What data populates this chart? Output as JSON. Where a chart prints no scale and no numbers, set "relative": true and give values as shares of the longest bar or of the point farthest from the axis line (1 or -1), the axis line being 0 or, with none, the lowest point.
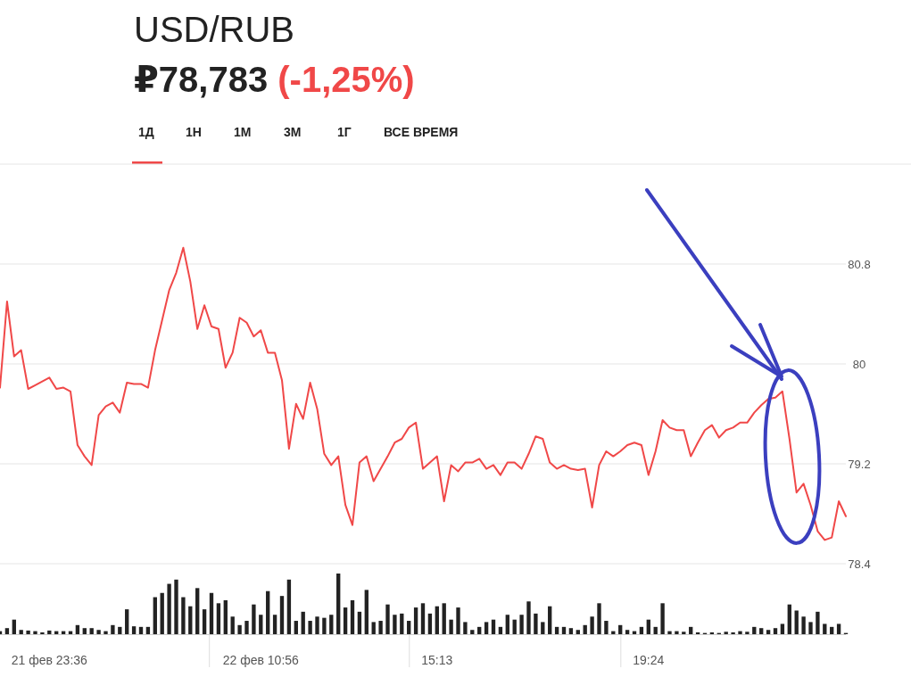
{
  "chart_data": [
    {
      "type": "line",
      "title": "USD/RUB",
      "subtitle": "₽78,783 (-1,25%)",
      "annotations": [
        "1Д",
        "1Н",
        "1М",
        "3М",
        "1Г",
        "ВСЕ ВРЕМЯ"
      ],
      "categories": [
        null,
        null,
        null,
        null,
        null,
        null,
        null,
        null,
        null,
        null,
        null,
        null,
        null,
        null,
        null,
        null,
        null,
        null,
        null,
        null,
        null,
        null,
        null,
        null,
        null,
        null,
        null,
        null,
        null,
        null,
        null,
        null,
        null,
        null,
        null,
        null,
        null,
        null,
        null,
        null,
        null,
        null,
        null,
        null,
        null,
        null,
        null,
        null,
        null,
        null,
        null,
        null,
        null,
        null,
        null,
        null,
        null,
        null,
        null,
        null,
        null,
        null,
        null,
        null,
        null,
        null,
        null,
        null,
        null,
        null,
        null,
        null,
        null,
        null,
        null,
        null,
        null,
        null,
        null,
        null,
        null,
        null,
        null,
        null,
        null,
        null,
        null,
        null,
        null,
        null,
        null,
        null,
        null,
        null,
        null,
        null,
        null,
        null,
        null,
        null,
        null,
        null,
        null,
        null,
        null,
        null,
        null,
        null,
        null,
        null,
        null,
        null,
        null,
        null,
        null,
        null,
        null,
        null,
        null,
        null,
        null
      ],
      "series": [
        {
          "color": "#f04848",
          "values": [
            79.81,
            80.5,
            80.06,
            80.11,
            79.8,
            79.83,
            79.86,
            79.89,
            79.8,
            79.81,
            79.78,
            79.35,
            79.26,
            79.19,
            79.59,
            79.66,
            79.69,
            79.61,
            79.85,
            79.84,
            79.84,
            79.81,
            80.11,
            80.35,
            80.59,
            80.73,
            80.93,
            80.66,
            80.28,
            80.47,
            80.3,
            80.28,
            79.97,
            80.09,
            80.37,
            80.33,
            80.22,
            80.27,
            80.09,
            80.09,
            79.87,
            79.32,
            79.68,
            79.56,
            79.85,
            79.64,
            79.28,
            79.19,
            79.26,
            78.87,
            78.71,
            79.21,
            79.26,
            79.06,
            79.16,
            79.26,
            79.37,
            79.4,
            79.49,
            79.53,
            79.16,
            79.21,
            79.26,
            78.9,
            79.19,
            79.14,
            79.21,
            79.21,
            79.24,
            79.16,
            79.19,
            79.11,
            79.21,
            79.21,
            79.16,
            79.28,
            79.42,
            79.4,
            79.21,
            79.16,
            79.19,
            79.16,
            79.15,
            79.16,
            78.85,
            79.19,
            79.3,
            79.26,
            79.3,
            79.35,
            79.37,
            79.35,
            79.11,
            79.3,
            79.55,
            79.49,
            79.47,
            79.47,
            79.26,
            79.37,
            79.47,
            79.51,
            79.41,
            79.47,
            79.49,
            79.53,
            79.53,
            79.61,
            79.67,
            79.72,
            79.73,
            79.78,
            79.4,
            78.97,
            79.04,
            78.87,
            78.66,
            78.59,
            78.61,
            78.9,
            78.78
          ]
        }
      ],
      "ylim": [
        78.4,
        81.6
      ],
      "yticks": [
        78.4,
        79.2,
        80,
        80.8
      ],
      "grid": "y",
      "tick_labels": "y"
    },
    {
      "type": "bar",
      "relative": true,
      "color": "#222222",
      "tick_labels": "x",
      "categories": [
        null,
        null,
        null,
        null,
        null,
        null,
        null,
        "21 фев 23:36",
        null,
        null,
        null,
        null,
        null,
        null,
        null,
        null,
        null,
        null,
        null,
        null,
        null,
        null,
        null,
        null,
        null,
        null,
        null,
        null,
        null,
        null,
        null,
        null,
        null,
        null,
        null,
        null,
        null,
        "22 фев 10:56",
        null,
        null,
        null,
        null,
        null,
        null,
        null,
        null,
        null,
        null,
        null,
        null,
        null,
        null,
        null,
        null,
        null,
        null,
        null,
        null,
        null,
        null,
        null,
        null,
        "15:13",
        null,
        null,
        null,
        null,
        null,
        null,
        null,
        null,
        null,
        null,
        null,
        null,
        null,
        null,
        null,
        null,
        null,
        null,
        null,
        null,
        null,
        null,
        null,
        null,
        null,
        null,
        null,
        null,
        null,
        "19:24",
        null,
        null,
        null,
        null,
        null,
        null,
        null,
        null,
        null,
        null,
        null,
        null,
        null,
        null,
        null,
        null,
        null,
        null,
        null,
        null,
        null,
        null,
        null,
        null,
        null,
        null,
        null,
        null
      ],
      "values": [
        0.05,
        0.1,
        0.24,
        0.07,
        0.06,
        0.05,
        0.03,
        0.06,
        0.05,
        0.05,
        0.05,
        0.15,
        0.1,
        0.1,
        0.07,
        0.05,
        0.15,
        0.12,
        0.41,
        0.13,
        0.12,
        0.12,
        0.61,
        0.68,
        0.83,
        0.9,
        0.61,
        0.46,
        0.76,
        0.41,
        0.68,
        0.51,
        0.56,
        0.29,
        0.15,
        0.22,
        0.49,
        0.32,
        0.71,
        0.32,
        0.63,
        0.9,
        0.22,
        0.37,
        0.22,
        0.29,
        0.27,
        0.32,
        1,
        0.44,
        0.56,
        0.37,
        0.73,
        0.2,
        0.22,
        0.49,
        0.32,
        0.34,
        0.22,
        0.44,
        0.51,
        0.34,
        0.46,
        0.51,
        0.24,
        0.44,
        0.2,
        0.07,
        0.12,
        0.2,
        0.24,
        0.12,
        0.32,
        0.24,
        0.32,
        0.54,
        0.34,
        0.2,
        0.46,
        0.12,
        0.12,
        0.1,
        0.07,
        0.15,
        0.29,
        0.51,
        0.22,
        0.05,
        0.15,
        0.07,
        0.05,
        0.12,
        0.24,
        0.12,
        0.51,
        0.05,
        0.05,
        0.04,
        0.12,
        0.03,
        0.02,
        0.03,
        0.02,
        0.04,
        0.03,
        0.05,
        0.04,
        0.12,
        0.1,
        0.07,
        0.1,
        0.17,
        0.49,
        0.39,
        0.29,
        0.2,
        0.37,
        0.17,
        0.12,
        0.17,
        0.02
      ]
    }
  ]
}
